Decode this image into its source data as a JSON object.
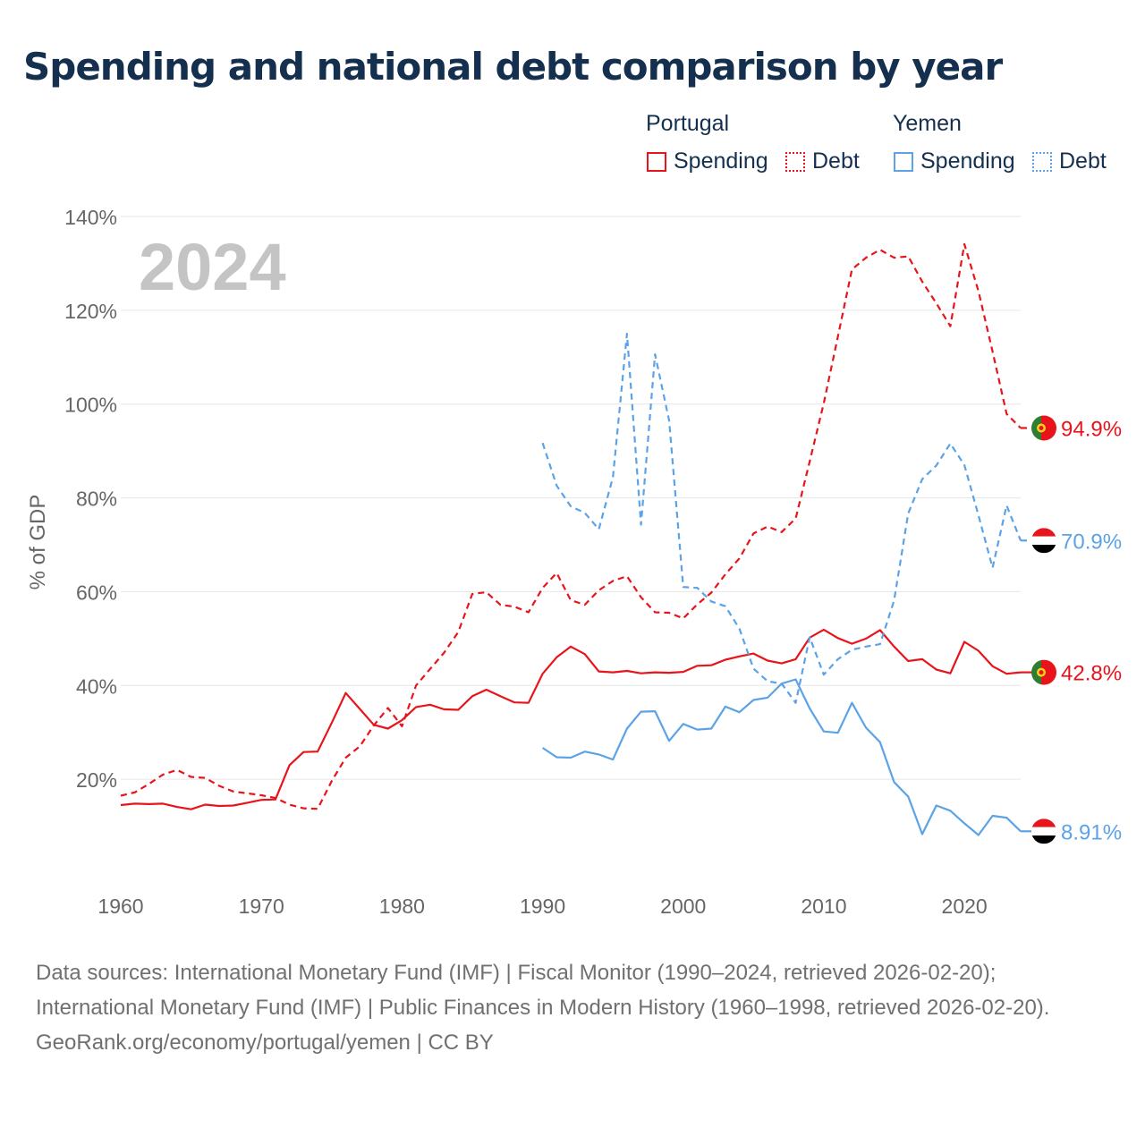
{
  "title": "Spending and national debt comparison by year",
  "legend": {
    "groups": [
      {
        "country": "Portugal",
        "color": "#e8141b",
        "items": [
          {
            "label": "Spending",
            "style": "solid"
          },
          {
            "label": "Debt",
            "style": "dotted"
          }
        ]
      },
      {
        "country": "Yemen",
        "color": "#5ba3e6",
        "items": [
          {
            "label": "Spending",
            "style": "solid"
          },
          {
            "label": "Debt",
            "style": "dotted"
          }
        ]
      }
    ]
  },
  "footer": {
    "sources": "Data sources: International Monetary Fund (IMF) | Fiscal Monitor (1990–2024, retrieved 2026-02-20); International Monetary Fund (IMF) | Public Finances in Modern History (1960–1998, retrieved 2026-02-20).",
    "credit": "GeoRank.org/economy/portugal/yemen | CC BY"
  },
  "chart_data": {
    "type": "line",
    "year_label": "2024",
    "ylabel": "% of GDP",
    "xlim": [
      1960,
      2024
    ],
    "ylim": [
      0,
      140
    ],
    "x_ticks": [
      1960,
      1970,
      1980,
      1990,
      2000,
      2010,
      2020
    ],
    "x_tick_labels": [
      "1960",
      "1970",
      "1980",
      "1990",
      "2000",
      "2010",
      "2020"
    ],
    "y_ticks": [
      20,
      40,
      60,
      80,
      100,
      120,
      140
    ],
    "y_tick_labels": [
      "20%",
      "40%",
      "60%",
      "80%",
      "100%",
      "120%",
      "140%"
    ],
    "grid": true,
    "series": [
      {
        "name": "Portugal Debt",
        "country": "Portugal",
        "color": "#e8141b",
        "dash": "dashed",
        "end_label": "94.9%",
        "flag": "portugal",
        "x": [
          1960,
          1961,
          1962,
          1963,
          1964,
          1965,
          1966,
          1967,
          1968,
          1969,
          1970,
          1971,
          1972,
          1973,
          1974,
          1975,
          1976,
          1977,
          1978,
          1979,
          1980,
          1981,
          1982,
          1983,
          1984,
          1985,
          1986,
          1987,
          1988,
          1989,
          1990,
          1991,
          1992,
          1993,
          1994,
          1995,
          1996,
          1997,
          1998,
          1999,
          2000,
          2001,
          2002,
          2003,
          2004,
          2005,
          2006,
          2007,
          2008,
          2009,
          2010,
          2011,
          2012,
          2013,
          2014,
          2015,
          2016,
          2017,
          2018,
          2019,
          2020,
          2021,
          2022,
          2023,
          2024
        ],
        "y": [
          16.5,
          17.2,
          19,
          21,
          22,
          20.5,
          20.3,
          18.6,
          17.4,
          17,
          16.6,
          16,
          14.6,
          13.8,
          13.7,
          19.6,
          24.6,
          27,
          31.5,
          35.2,
          31.3,
          40,
          43.5,
          47,
          51.4,
          59.5,
          59.9,
          57.2,
          56.8,
          55.6,
          60.8,
          64,
          58.2,
          57.2,
          60.3,
          62.3,
          63.3,
          58.8,
          55.6,
          55.5,
          54.3,
          57.3,
          59.8,
          63.7,
          67.1,
          72.4,
          73.9,
          72.7,
          75.6,
          87.8,
          100.2,
          114.4,
          128.7,
          131.2,
          132.9,
          131.2,
          131.5,
          126.1,
          121.5,
          116.6,
          134.1,
          124.1,
          111.2,
          97.9,
          94.9
        ]
      },
      {
        "name": "Portugal Spending",
        "country": "Portugal",
        "color": "#e8141b",
        "dash": "solid",
        "end_label": "42.8%",
        "flag": "portugal",
        "x": [
          1960,
          1961,
          1962,
          1963,
          1964,
          1965,
          1966,
          1967,
          1968,
          1969,
          1970,
          1971,
          1972,
          1973,
          1974,
          1975,
          1976,
          1977,
          1978,
          1979,
          1980,
          1981,
          1982,
          1983,
          1984,
          1985,
          1986,
          1987,
          1988,
          1989,
          1990,
          1991,
          1992,
          1993,
          1994,
          1995,
          1996,
          1997,
          1998,
          1999,
          2000,
          2001,
          2002,
          2003,
          2004,
          2005,
          2006,
          2007,
          2008,
          2009,
          2010,
          2011,
          2012,
          2013,
          2014,
          2015,
          2016,
          2017,
          2018,
          2019,
          2020,
          2021,
          2022,
          2023,
          2024
        ],
        "y": [
          14.5,
          14.8,
          14.7,
          14.8,
          14.1,
          13.6,
          14.6,
          14.3,
          14.4,
          15,
          15.6,
          15.7,
          23,
          25.8,
          25.9,
          32,
          38.4,
          35,
          31.6,
          30.8,
          32.6,
          35.4,
          35.9,
          34.9,
          34.8,
          37.7,
          39.1,
          37.7,
          36.4,
          36.3,
          42.5,
          46,
          48.3,
          46.7,
          43,
          42.8,
          43.1,
          42.6,
          42.8,
          42.7,
          42.9,
          44.2,
          44.3,
          45.5,
          46.2,
          46.8,
          45.3,
          44.7,
          45.6,
          50.2,
          51.9,
          50.1,
          48.9,
          50,
          51.8,
          48.3,
          45.2,
          45.6,
          43.4,
          42.6,
          49.3,
          47.4,
          44.1,
          42.5,
          42.8
        ]
      },
      {
        "name": "Yemen Debt",
        "country": "Yemen",
        "color": "#5ba3e6",
        "dash": "dashed",
        "end_label": "70.9%",
        "flag": "yemen",
        "x": [
          1990,
          1991,
          1992,
          1993,
          1994,
          1995,
          1996,
          1997,
          1998,
          1999,
          2000,
          2001,
          2002,
          2003,
          2004,
          2005,
          2006,
          2007,
          2008,
          2009,
          2010,
          2011,
          2012,
          2013,
          2014,
          2015,
          2016,
          2017,
          2018,
          2019,
          2020,
          2021,
          2022,
          2023,
          2024
        ],
        "y": [
          91.7,
          82.6,
          78.2,
          76.8,
          73.3,
          84.4,
          115,
          74.3,
          110.6,
          96.5,
          61,
          60.8,
          57.9,
          56.9,
          52.1,
          43.6,
          40.9,
          40.4,
          36.3,
          50.3,
          42.3,
          45.6,
          47.6,
          48.3,
          48.8,
          58.1,
          76.7,
          84,
          86.9,
          91.6,
          87,
          76.3,
          65.1,
          78.4,
          70.9
        ]
      },
      {
        "name": "Yemen Spending",
        "country": "Yemen",
        "color": "#5ba3e6",
        "dash": "solid",
        "end_label": "8.91%",
        "flag": "yemen",
        "x": [
          1990,
          1991,
          1992,
          1993,
          1994,
          1995,
          1996,
          1997,
          1998,
          1999,
          2000,
          2001,
          2002,
          2003,
          2004,
          2005,
          2006,
          2007,
          2008,
          2009,
          2010,
          2011,
          2012,
          2013,
          2014,
          2015,
          2016,
          2017,
          2018,
          2019,
          2020,
          2021,
          2022,
          2023,
          2024
        ],
        "y": [
          26.7,
          24.7,
          24.6,
          25.9,
          25.3,
          24.2,
          30.8,
          34.4,
          34.5,
          28.2,
          31.8,
          30.6,
          30.8,
          35.5,
          34.3,
          36.9,
          37.4,
          40.4,
          41.3,
          35.1,
          30.2,
          29.9,
          36.3,
          31,
          27.9,
          19.4,
          16.3,
          8.3,
          14.4,
          13.3,
          10.6,
          8.1,
          12.2,
          11.8,
          8.91
        ]
      }
    ]
  }
}
